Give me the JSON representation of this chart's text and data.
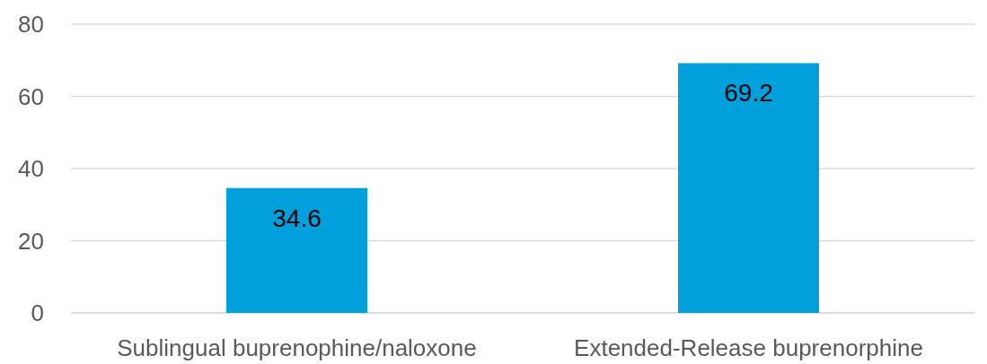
{
  "chart_data": {
    "type": "bar",
    "categories": [
      "Sublingual buprenophine/naloxone",
      "Extended-Release buprenorphine"
    ],
    "values": [
      34.6,
      69.2
    ],
    "color": "#00a0dc",
    "ylim": [
      0,
      80
    ],
    "yticks": [
      0,
      20,
      40,
      60,
      80
    ],
    "grid": "y",
    "data_labels": true
  }
}
